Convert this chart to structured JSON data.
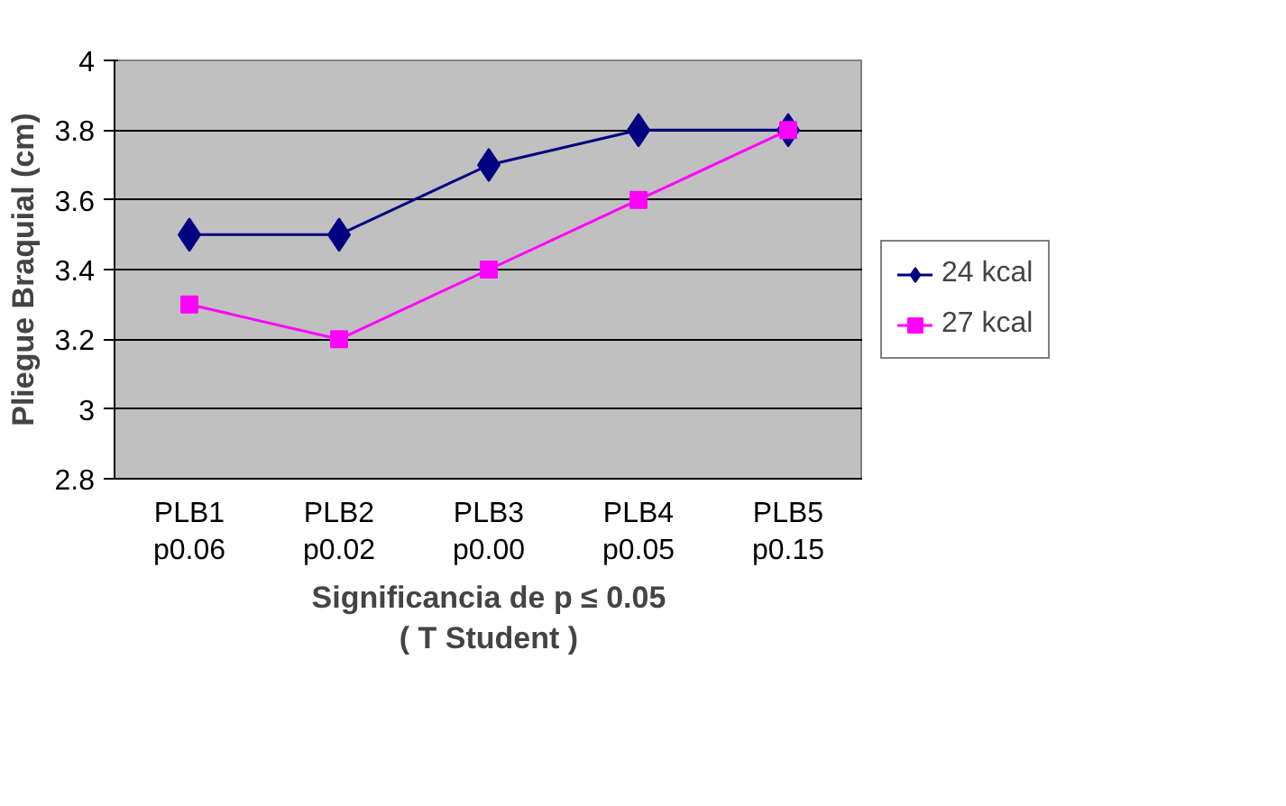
{
  "chart_data": {
    "type": "line",
    "xlabel": "Significancia de p ≤ 0.05\n( T Student )",
    "ylabel": "Pliegue Braquial (cm)",
    "categories": [
      "PLB1\np0.06",
      "PLB2\np0.02",
      "PLB3\np0.00",
      "PLB4\np0.05",
      "PLB5\np0.15"
    ],
    "series": [
      {
        "name": "24 kcal",
        "color": "#000080",
        "marker": "diamond",
        "values": [
          3.5,
          3.5,
          3.7,
          3.8,
          3.8
        ]
      },
      {
        "name": "27 kcal",
        "color": "#ff00ff",
        "marker": "square",
        "values": [
          3.3,
          3.2,
          3.4,
          3.6,
          3.8
        ]
      }
    ],
    "ylim": [
      2.8,
      4
    ],
    "yticks": [
      2.8,
      3,
      3.2,
      3.4,
      3.6,
      3.8,
      4
    ],
    "grid": "y",
    "legend": "right",
    "line_style": "solid"
  }
}
